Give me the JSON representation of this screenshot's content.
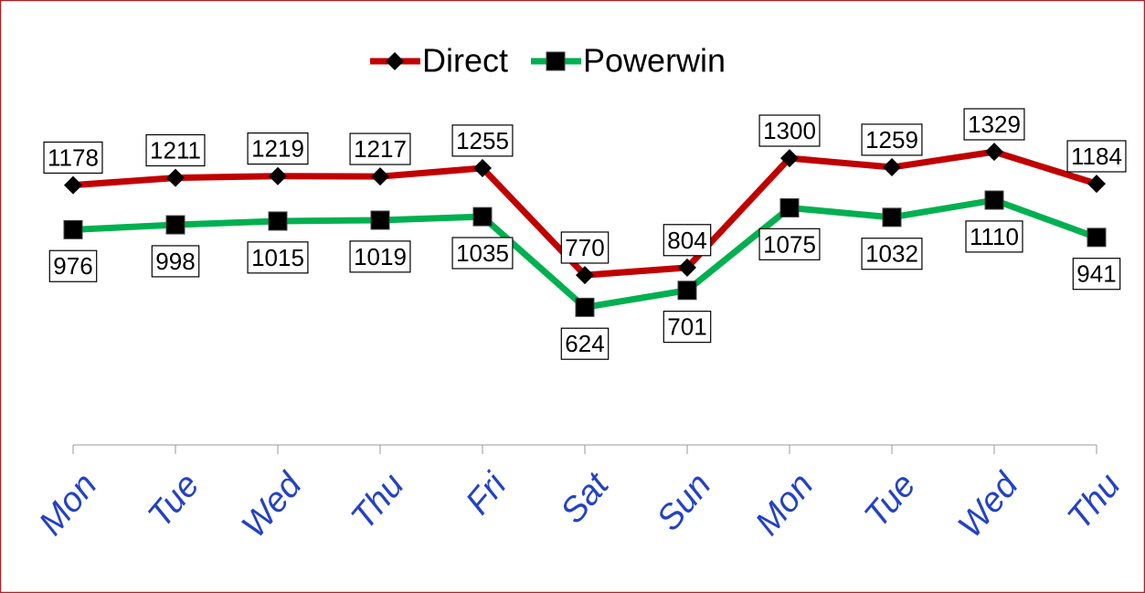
{
  "chart_data": {
    "type": "line",
    "categories": [
      "Mon",
      "Tue",
      "Wed",
      "Thu",
      "Fri",
      "Sat",
      "Sun",
      "Mon",
      "Tue",
      "Wed",
      "Thu"
    ],
    "series": [
      {
        "name": "Direct",
        "color": "#c00000",
        "marker": "diamond",
        "values": [
          1178,
          1211,
          1219,
          1217,
          1255,
          770,
          804,
          1300,
          1259,
          1329,
          1184
        ]
      },
      {
        "name": "Powerwin",
        "color": "#00b050",
        "marker": "square",
        "values": [
          976,
          998,
          1015,
          1019,
          1035,
          624,
          701,
          1075,
          1032,
          1110,
          941
        ]
      }
    ],
    "ylim": [
      0,
      1400
    ],
    "legend": "top"
  }
}
